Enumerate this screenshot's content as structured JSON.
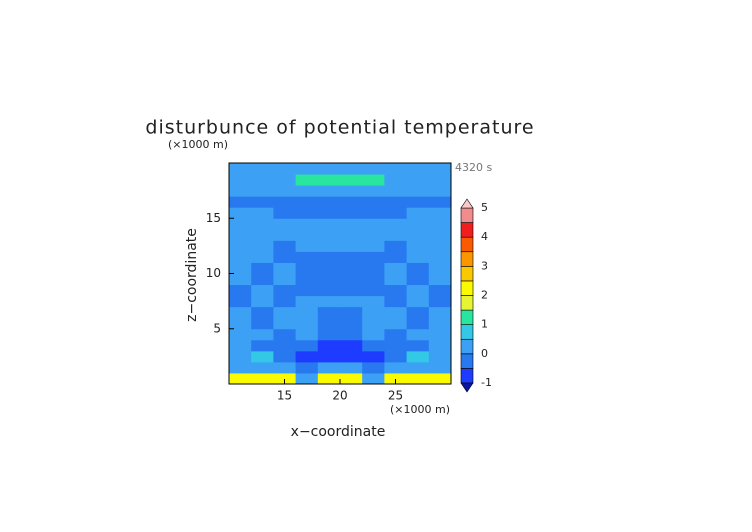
{
  "chart_data": {
    "type": "contour",
    "title": "disturbunce of potential temperature",
    "time_label": "4320 s",
    "y_unit": "(×1000 m)",
    "x_unit": "(×1000 m)",
    "xlabel": "x−coordinate",
    "ylabel": "z−coordinate",
    "xlim": [
      10,
      30
    ],
    "ylim": [
      0,
      20
    ],
    "xticks": [
      15,
      20,
      25
    ],
    "yticks": [
      5,
      10,
      15
    ],
    "x": [
      11,
      13,
      15,
      17,
      19,
      21,
      23,
      25,
      27,
      29
    ],
    "y": [
      0.5,
      1.5,
      2.5,
      3.5,
      4.5,
      5.5,
      6.5,
      7.5,
      8.5,
      9.5,
      10.5,
      11.5,
      12.5,
      13.5,
      14.5,
      15.5,
      16.5,
      17.5,
      18.5,
      19.5
    ],
    "z": [
      [
        2.2,
        2.2,
        2.2,
        0.3,
        2.2,
        2.2,
        0.3,
        2.2,
        2.2,
        2.2
      ],
      [
        0.3,
        0.3,
        0.3,
        -0.3,
        0.3,
        0.3,
        -0.3,
        0.3,
        0.3,
        0.3
      ],
      [
        0.3,
        0.8,
        -0.3,
        -0.7,
        -0.7,
        -0.7,
        -0.7,
        -0.3,
        0.8,
        0.3
      ],
      [
        0.2,
        -0.2,
        -0.3,
        -0.3,
        -0.7,
        -0.7,
        -0.3,
        -0.3,
        -0.2,
        0.2
      ],
      [
        0.2,
        0.2,
        -0.2,
        0.2,
        -0.2,
        -0.2,
        0.2,
        -0.2,
        0.2,
        0.2
      ],
      [
        0.2,
        -0.2,
        0.2,
        0.2,
        -0.2,
        -0.2,
        0.2,
        0.2,
        -0.2,
        0.2
      ],
      [
        0.2,
        -0.2,
        0.2,
        0.2,
        -0.2,
        -0.2,
        0.2,
        0.2,
        -0.2,
        0.2
      ],
      [
        -0.2,
        0.2,
        -0.2,
        0.2,
        0.2,
        0.2,
        0.2,
        -0.2,
        0.2,
        -0.2
      ],
      [
        -0.2,
        0.2,
        -0.2,
        -0.2,
        -0.2,
        -0.2,
        -0.2,
        -0.2,
        0.2,
        -0.2
      ],
      [
        0.2,
        -0.2,
        0.2,
        -0.2,
        -0.2,
        -0.2,
        -0.2,
        0.2,
        -0.2,
        0.2
      ],
      [
        0.2,
        -0.2,
        0.2,
        -0.2,
        -0.2,
        -0.2,
        -0.2,
        0.2,
        -0.2,
        0.2
      ],
      [
        0.2,
        0.2,
        -0.2,
        -0.2,
        -0.2,
        -0.2,
        -0.2,
        -0.2,
        0.2,
        0.2
      ],
      [
        0.2,
        0.2,
        -0.2,
        0.2,
        0.2,
        0.2,
        0.2,
        -0.2,
        0.2,
        0.2
      ],
      [
        0.2,
        0.2,
        0.2,
        0.2,
        0.2,
        0.2,
        0.2,
        0.2,
        0.2,
        0.2
      ],
      [
        0.2,
        0.2,
        0.2,
        0.2,
        0.2,
        0.2,
        0.2,
        0.2,
        0.2,
        0.2
      ],
      [
        0.2,
        0.2,
        -0.2,
        -0.2,
        -0.2,
        -0.2,
        -0.2,
        -0.2,
        0.2,
        0.2
      ],
      [
        -0.2,
        -0.2,
        -0.2,
        -0.2,
        -0.2,
        -0.2,
        -0.2,
        -0.2,
        -0.2,
        -0.2
      ],
      [
        0.2,
        0.2,
        0.2,
        0.2,
        0.2,
        0.2,
        0.2,
        0.2,
        0.2,
        0.2
      ],
      [
        0.2,
        0.2,
        0.2,
        1.2,
        1.2,
        1.2,
        1.2,
        0.2,
        0.2,
        0.2
      ],
      [
        0.2,
        0.2,
        0.2,
        0.2,
        0.2,
        0.2,
        0.2,
        0.2,
        0.2,
        0.2
      ]
    ],
    "levels": [
      -1,
      -0.5,
      0,
      0.5,
      1,
      1.5,
      2,
      2.5,
      3,
      3.5,
      4,
      4.5,
      5
    ],
    "colors": [
      "#0a14a0",
      "#1e3cff",
      "#2878f0",
      "#3ca0f5",
      "#32c8e6",
      "#28e6a0",
      "#e6f532",
      "#fafa00",
      "#fac800",
      "#fa9600",
      "#fa5a00",
      "#f01e1e",
      "#f08c8c",
      "#fac8c8"
    ],
    "cbar_ticks": [
      -1,
      0,
      1,
      2,
      3,
      4,
      5
    ]
  }
}
